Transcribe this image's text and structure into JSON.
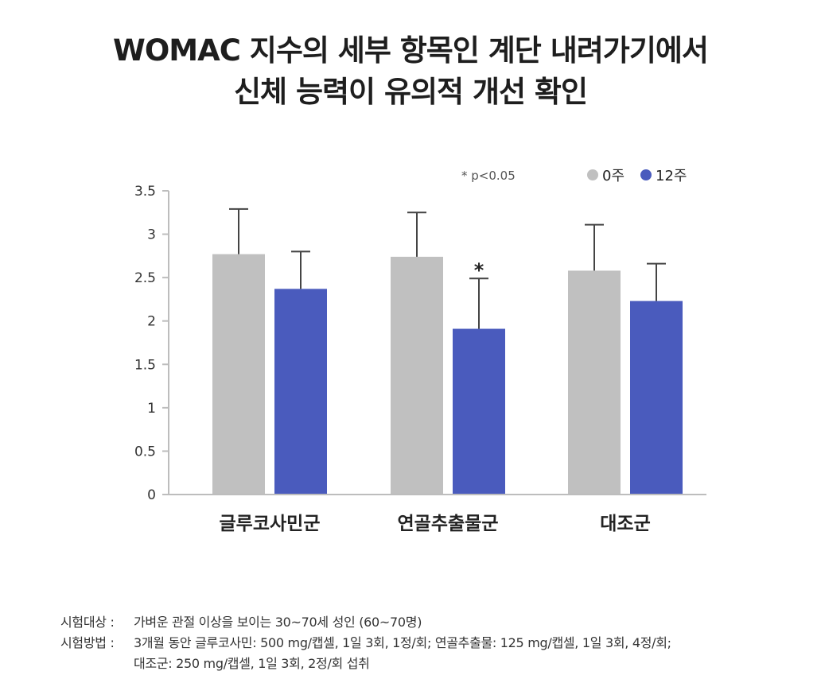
{
  "title": {
    "line1": "WOMAC 지수의 세부 항목인 계단 내려가기에서",
    "line2": "신체 능력이 유의적 개선 확인"
  },
  "chart_data": {
    "type": "bar",
    "categories": [
      "글루코사민군",
      "연골추출물군",
      "대조군"
    ],
    "series": [
      {
        "name": "0주",
        "color": "#c0c0c0",
        "values": [
          2.77,
          2.74,
          2.58
        ],
        "errors": [
          0.52,
          0.51,
          0.53
        ]
      },
      {
        "name": "12주",
        "color": "#4a5bbd",
        "values": [
          2.37,
          1.91,
          2.23
        ],
        "errors": [
          0.43,
          0.58,
          0.43
        ]
      }
    ],
    "ylim": [
      0,
      3.5
    ],
    "yticks": [
      "0",
      "0.5",
      "1",
      "1.5",
      "2",
      "2.5",
      "3",
      "3.5"
    ],
    "significance": {
      "category_index": 1,
      "series_index": 1,
      "marker": "*"
    },
    "legend_note": "* p<0.05",
    "legend_placement": "top-right",
    "grid": false
  },
  "footnote": {
    "subjects_label": "시험대상 :",
    "subjects_text": "가벼운 관절 이상을 보이는 30~70세 성인 (60~70명)",
    "method_label": "시험방법 :",
    "method_text_1": "3개월 동안 글루코사민: 500 mg/캡셀, 1일 3회, 1정/회; 연골추출물: 125 mg/캡셀, 1일 3회, 4정/회;",
    "method_text_2": "대조군: 250 mg/캡셀, 1일 3회, 2정/회 섭취"
  }
}
